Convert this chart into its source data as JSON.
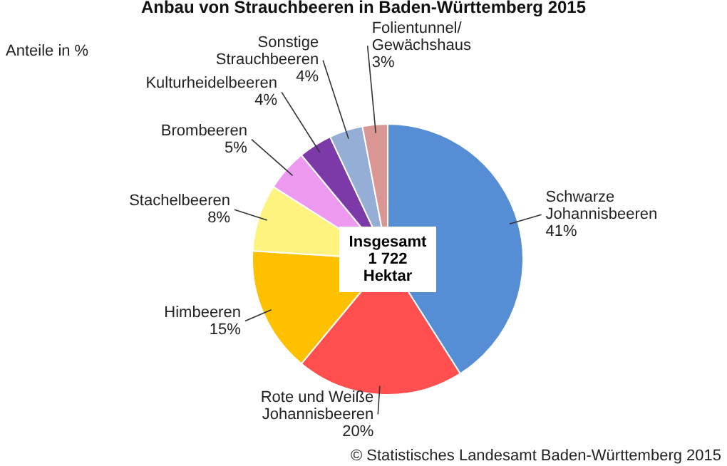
{
  "chart_data": {
    "type": "pie",
    "title": "Anbau von Strauchbeeren in Baden-Württemberg 2015",
    "categories": [
      "Schwarze Johannisbeeren",
      "Rote und Weiße Johannisbeeren",
      "Himbeeren",
      "Stachelbeeren",
      "Brombeeren",
      "Kulturheidelbeeren",
      "Sonstige Strauchbeeren",
      "Folientunnel/Gewächshaus"
    ],
    "values": [
      41,
      20,
      15,
      8,
      5,
      4,
      4,
      3
    ],
    "value_labels": [
      "41%",
      "20%",
      "15%",
      "8%",
      "5%",
      "4%",
      "4%",
      "3%"
    ],
    "colors": [
      "#558ed5",
      "#ff4f4f",
      "#ffc000",
      "#fff380",
      "#ee99f0",
      "#7b3aa8",
      "#95aed5",
      "#d99694"
    ],
    "annotations": [
      "Anteile in %",
      "Insgesamt 1 722 Hektar",
      "© Statistisches Landesamt Baden-Württemberg 2015"
    ]
  }
}
